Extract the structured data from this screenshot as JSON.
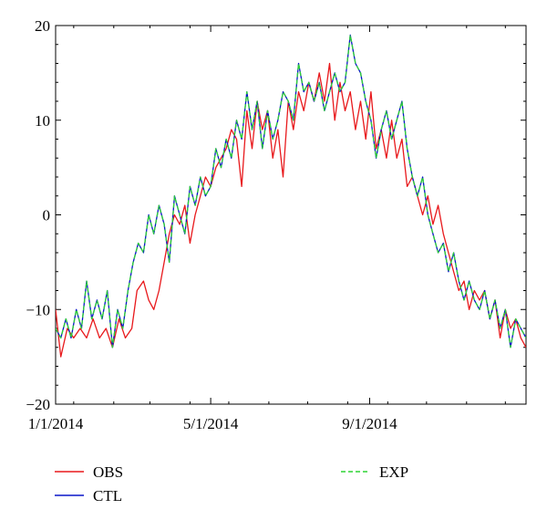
{
  "chart_data": {
    "type": "line",
    "title": "",
    "xlabel": "",
    "ylabel": "",
    "xlim": [
      "2014-01-01",
      "2014-12-31"
    ],
    "ylim": [
      -20,
      20
    ],
    "y_ticks": [
      "−20",
      "−10",
      "0",
      "10",
      "20"
    ],
    "x_ticks": [
      {
        "date": "2014-01-01",
        "label": "1/1/2014"
      },
      {
        "date": "2014-05-01",
        "label": "5/1/2014"
      },
      {
        "date": "2014-09-01",
        "label": "9/1/2014"
      }
    ],
    "grid": false,
    "legend_position": "bottom",
    "series": [
      {
        "name": "OBS",
        "color": "#e8191c",
        "style": "solid",
        "points": [
          [
            "2014-01-01",
            -10
          ],
          [
            "2014-01-05",
            -15
          ],
          [
            "2014-01-10",
            -12
          ],
          [
            "2014-01-15",
            -13
          ],
          [
            "2014-01-20",
            -12
          ],
          [
            "2014-01-25",
            -13
          ],
          [
            "2014-01-30",
            -11
          ],
          [
            "2014-02-04",
            -13
          ],
          [
            "2014-02-09",
            -12
          ],
          [
            "2014-02-14",
            -14
          ],
          [
            "2014-02-19",
            -11
          ],
          [
            "2014-02-24",
            -13
          ],
          [
            "2014-03-01",
            -12
          ],
          [
            "2014-03-05",
            -8
          ],
          [
            "2014-03-10",
            -7
          ],
          [
            "2014-03-14",
            -9
          ],
          [
            "2014-03-18",
            -10
          ],
          [
            "2014-03-22",
            -8
          ],
          [
            "2014-03-26",
            -5
          ],
          [
            "2014-03-30",
            -2
          ],
          [
            "2014-04-03",
            0
          ],
          [
            "2014-04-07",
            -1
          ],
          [
            "2014-04-11",
            1
          ],
          [
            "2014-04-15",
            -3
          ],
          [
            "2014-04-19",
            0
          ],
          [
            "2014-04-23",
            2
          ],
          [
            "2014-04-27",
            4
          ],
          [
            "2014-05-01",
            3
          ],
          [
            "2014-05-05",
            5
          ],
          [
            "2014-05-09",
            6
          ],
          [
            "2014-05-13",
            7
          ],
          [
            "2014-05-17",
            9
          ],
          [
            "2014-05-21",
            8
          ],
          [
            "2014-05-25",
            3
          ],
          [
            "2014-05-29",
            11
          ],
          [
            "2014-06-02",
            7
          ],
          [
            "2014-06-06",
            12
          ],
          [
            "2014-06-10",
            9
          ],
          [
            "2014-06-14",
            11
          ],
          [
            "2014-06-18",
            6
          ],
          [
            "2014-06-22",
            9
          ],
          [
            "2014-06-26",
            4
          ],
          [
            "2014-06-30",
            12
          ],
          [
            "2014-07-04",
            9
          ],
          [
            "2014-07-08",
            13
          ],
          [
            "2014-07-12",
            11
          ],
          [
            "2014-07-16",
            14
          ],
          [
            "2014-07-20",
            12
          ],
          [
            "2014-07-24",
            15
          ],
          [
            "2014-07-28",
            12
          ],
          [
            "2014-08-01",
            16
          ],
          [
            "2014-08-05",
            10
          ],
          [
            "2014-08-09",
            14
          ],
          [
            "2014-08-13",
            11
          ],
          [
            "2014-08-17",
            13
          ],
          [
            "2014-08-21",
            9
          ],
          [
            "2014-08-25",
            12
          ],
          [
            "2014-08-29",
            8
          ],
          [
            "2014-09-02",
            13
          ],
          [
            "2014-09-06",
            7
          ],
          [
            "2014-09-10",
            9
          ],
          [
            "2014-09-14",
            6
          ],
          [
            "2014-09-18",
            10
          ],
          [
            "2014-09-22",
            6
          ],
          [
            "2014-09-26",
            8
          ],
          [
            "2014-09-30",
            3
          ],
          [
            "2014-10-04",
            4
          ],
          [
            "2014-10-08",
            2
          ],
          [
            "2014-10-12",
            0
          ],
          [
            "2014-10-16",
            2
          ],
          [
            "2014-10-20",
            -1
          ],
          [
            "2014-10-24",
            1
          ],
          [
            "2014-10-28",
            -2
          ],
          [
            "2014-11-01",
            -4
          ],
          [
            "2014-11-05",
            -6
          ],
          [
            "2014-11-09",
            -8
          ],
          [
            "2014-11-13",
            -7
          ],
          [
            "2014-11-17",
            -10
          ],
          [
            "2014-11-21",
            -8
          ],
          [
            "2014-11-25",
            -9
          ],
          [
            "2014-11-29",
            -8
          ],
          [
            "2014-12-03",
            -11
          ],
          [
            "2014-12-07",
            -9
          ],
          [
            "2014-12-11",
            -13
          ],
          [
            "2014-12-15",
            -10
          ],
          [
            "2014-12-19",
            -12
          ],
          [
            "2014-12-23",
            -11
          ],
          [
            "2014-12-27",
            -13
          ],
          [
            "2014-12-31",
            -14
          ]
        ]
      },
      {
        "name": "CTL",
        "color": "#0a16c8",
        "style": "solid",
        "points": [
          [
            "2014-01-01",
            -12
          ],
          [
            "2014-01-05",
            -13
          ],
          [
            "2014-01-09",
            -11
          ],
          [
            "2014-01-13",
            -13
          ],
          [
            "2014-01-17",
            -10
          ],
          [
            "2014-01-21",
            -12
          ],
          [
            "2014-01-25",
            -7
          ],
          [
            "2014-01-29",
            -11
          ],
          [
            "2014-02-02",
            -9
          ],
          [
            "2014-02-06",
            -11
          ],
          [
            "2014-02-10",
            -8
          ],
          [
            "2014-02-14",
            -14
          ],
          [
            "2014-02-18",
            -10
          ],
          [
            "2014-02-22",
            -12
          ],
          [
            "2014-02-26",
            -8
          ],
          [
            "2014-03-02",
            -5
          ],
          [
            "2014-03-06",
            -3
          ],
          [
            "2014-03-10",
            -4
          ],
          [
            "2014-03-14",
            0
          ],
          [
            "2014-03-18",
            -2
          ],
          [
            "2014-03-22",
            1
          ],
          [
            "2014-03-26",
            -1
          ],
          [
            "2014-03-30",
            -5
          ],
          [
            "2014-04-03",
            2
          ],
          [
            "2014-04-07",
            0
          ],
          [
            "2014-04-11",
            -2
          ],
          [
            "2014-04-15",
            3
          ],
          [
            "2014-04-19",
            1
          ],
          [
            "2014-04-23",
            4
          ],
          [
            "2014-04-27",
            2
          ],
          [
            "2014-05-01",
            3
          ],
          [
            "2014-05-05",
            7
          ],
          [
            "2014-05-09",
            5
          ],
          [
            "2014-05-13",
            8
          ],
          [
            "2014-05-17",
            6
          ],
          [
            "2014-05-21",
            10
          ],
          [
            "2014-05-25",
            8
          ],
          [
            "2014-05-29",
            13
          ],
          [
            "2014-06-02",
            9
          ],
          [
            "2014-06-06",
            12
          ],
          [
            "2014-06-10",
            7
          ],
          [
            "2014-06-14",
            11
          ],
          [
            "2014-06-18",
            8
          ],
          [
            "2014-06-22",
            10
          ],
          [
            "2014-06-26",
            13
          ],
          [
            "2014-06-30",
            12
          ],
          [
            "2014-07-04",
            10
          ],
          [
            "2014-07-08",
            16
          ],
          [
            "2014-07-12",
            13
          ],
          [
            "2014-07-16",
            14
          ],
          [
            "2014-07-20",
            12
          ],
          [
            "2014-07-24",
            14
          ],
          [
            "2014-07-28",
            11
          ],
          [
            "2014-08-01",
            13
          ],
          [
            "2014-08-05",
            15
          ],
          [
            "2014-08-09",
            13
          ],
          [
            "2014-08-13",
            14
          ],
          [
            "2014-08-17",
            19
          ],
          [
            "2014-08-21",
            16
          ],
          [
            "2014-08-25",
            15
          ],
          [
            "2014-08-29",
            12
          ],
          [
            "2014-09-02",
            10
          ],
          [
            "2014-09-06",
            6
          ],
          [
            "2014-09-10",
            9
          ],
          [
            "2014-09-14",
            11
          ],
          [
            "2014-09-18",
            8
          ],
          [
            "2014-09-22",
            10
          ],
          [
            "2014-09-26",
            12
          ],
          [
            "2014-09-30",
            7
          ],
          [
            "2014-10-04",
            4
          ],
          [
            "2014-10-08",
            2
          ],
          [
            "2014-10-12",
            4
          ],
          [
            "2014-10-16",
            0
          ],
          [
            "2014-10-20",
            -2
          ],
          [
            "2014-10-24",
            -4
          ],
          [
            "2014-10-28",
            -3
          ],
          [
            "2014-11-01",
            -6
          ],
          [
            "2014-11-05",
            -4
          ],
          [
            "2014-11-09",
            -7
          ],
          [
            "2014-11-13",
            -9
          ],
          [
            "2014-11-17",
            -7
          ],
          [
            "2014-11-21",
            -9
          ],
          [
            "2014-11-25",
            -10
          ],
          [
            "2014-11-29",
            -8
          ],
          [
            "2014-12-03",
            -11
          ],
          [
            "2014-12-07",
            -9
          ],
          [
            "2014-12-11",
            -12
          ],
          [
            "2014-12-15",
            -10
          ],
          [
            "2014-12-19",
            -14
          ],
          [
            "2014-12-23",
            -11
          ],
          [
            "2014-12-27",
            -12
          ],
          [
            "2014-12-31",
            -13
          ]
        ]
      },
      {
        "name": "EXP",
        "color": "#2ed433",
        "style": "dashed",
        "points": [
          [
            "2014-01-01",
            -12
          ],
          [
            "2014-01-05",
            -13
          ],
          [
            "2014-01-09",
            -11
          ],
          [
            "2014-01-13",
            -13
          ],
          [
            "2014-01-17",
            -10
          ],
          [
            "2014-01-21",
            -12
          ],
          [
            "2014-01-25",
            -7
          ],
          [
            "2014-01-29",
            -11
          ],
          [
            "2014-02-02",
            -9
          ],
          [
            "2014-02-06",
            -11
          ],
          [
            "2014-02-10",
            -8
          ],
          [
            "2014-02-14",
            -14
          ],
          [
            "2014-02-18",
            -10
          ],
          [
            "2014-02-22",
            -12
          ],
          [
            "2014-02-26",
            -8
          ],
          [
            "2014-03-02",
            -5
          ],
          [
            "2014-03-06",
            -3
          ],
          [
            "2014-03-10",
            -4
          ],
          [
            "2014-03-14",
            0
          ],
          [
            "2014-03-18",
            -2
          ],
          [
            "2014-03-22",
            1
          ],
          [
            "2014-03-26",
            -1
          ],
          [
            "2014-03-30",
            -5
          ],
          [
            "2014-04-03",
            2
          ],
          [
            "2014-04-07",
            0
          ],
          [
            "2014-04-11",
            -2
          ],
          [
            "2014-04-15",
            3
          ],
          [
            "2014-04-19",
            1
          ],
          [
            "2014-04-23",
            4
          ],
          [
            "2014-04-27",
            2
          ],
          [
            "2014-05-01",
            3
          ],
          [
            "2014-05-05",
            7
          ],
          [
            "2014-05-09",
            5
          ],
          [
            "2014-05-13",
            8
          ],
          [
            "2014-05-17",
            6
          ],
          [
            "2014-05-21",
            10
          ],
          [
            "2014-05-25",
            8
          ],
          [
            "2014-05-29",
            13
          ],
          [
            "2014-06-02",
            9
          ],
          [
            "2014-06-06",
            12
          ],
          [
            "2014-06-10",
            7
          ],
          [
            "2014-06-14",
            11
          ],
          [
            "2014-06-18",
            8
          ],
          [
            "2014-06-22",
            10
          ],
          [
            "2014-06-26",
            13
          ],
          [
            "2014-06-30",
            12
          ],
          [
            "2014-07-04",
            10
          ],
          [
            "2014-07-08",
            16
          ],
          [
            "2014-07-12",
            13
          ],
          [
            "2014-07-16",
            14
          ],
          [
            "2014-07-20",
            12
          ],
          [
            "2014-07-24",
            14
          ],
          [
            "2014-07-28",
            11
          ],
          [
            "2014-08-01",
            13
          ],
          [
            "2014-08-05",
            15
          ],
          [
            "2014-08-09",
            13
          ],
          [
            "2014-08-13",
            14
          ],
          [
            "2014-08-17",
            19
          ],
          [
            "2014-08-21",
            16
          ],
          [
            "2014-08-25",
            15
          ],
          [
            "2014-08-29",
            12
          ],
          [
            "2014-09-02",
            10
          ],
          [
            "2014-09-06",
            6
          ],
          [
            "2014-09-10",
            9
          ],
          [
            "2014-09-14",
            11
          ],
          [
            "2014-09-18",
            8
          ],
          [
            "2014-09-22",
            10
          ],
          [
            "2014-09-26",
            12
          ],
          [
            "2014-09-30",
            7
          ],
          [
            "2014-10-04",
            4
          ],
          [
            "2014-10-08",
            2
          ],
          [
            "2014-10-12",
            4
          ],
          [
            "2014-10-16",
            0
          ],
          [
            "2014-10-20",
            -2
          ],
          [
            "2014-10-24",
            -4
          ],
          [
            "2014-10-28",
            -3
          ],
          [
            "2014-11-01",
            -6
          ],
          [
            "2014-11-05",
            -4
          ],
          [
            "2014-11-09",
            -7
          ],
          [
            "2014-11-13",
            -9
          ],
          [
            "2014-11-17",
            -7
          ],
          [
            "2014-11-21",
            -9
          ],
          [
            "2014-11-25",
            -10
          ],
          [
            "2014-11-29",
            -8
          ],
          [
            "2014-12-03",
            -11
          ],
          [
            "2014-12-07",
            -9
          ],
          [
            "2014-12-11",
            -12
          ],
          [
            "2014-12-15",
            -10
          ],
          [
            "2014-12-19",
            -14
          ],
          [
            "2014-12-23",
            -11
          ],
          [
            "2014-12-27",
            -12
          ],
          [
            "2014-12-31",
            -13
          ]
        ]
      }
    ]
  }
}
